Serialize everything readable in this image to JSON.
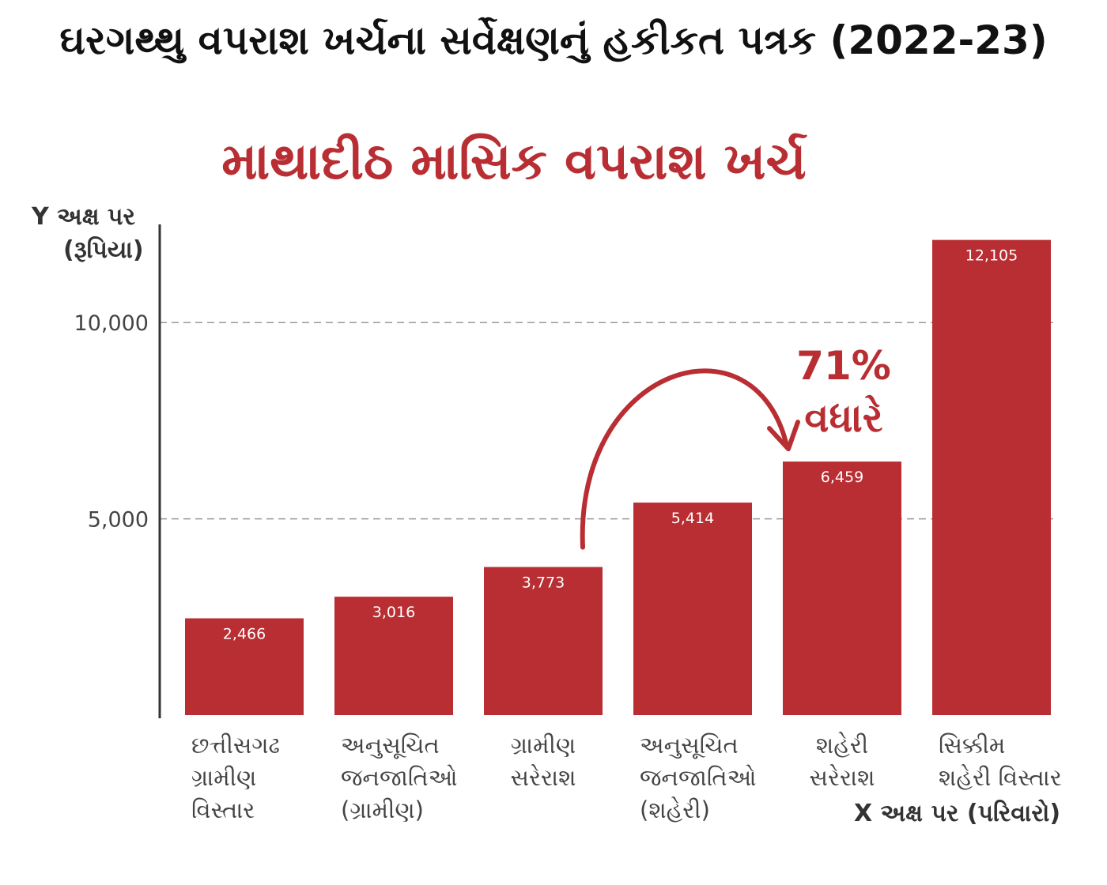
{
  "colors": {
    "bar": "#b82e33",
    "accent": "#b82e33",
    "grid": "#999999",
    "axis": "#333333"
  },
  "chart_data": {
    "type": "bar",
    "title": "ઘરગથ્થુ વપરાશ ખર્ચના સર્વેક્ષણનું હકીકત પત્રક (2022-23)",
    "subtitle": "માથાદીઠ માસિક વપરાશ ખર્ચ",
    "ylabel_line1": "Y  અક્ષ પર",
    "ylabel_line2": "(રૂપિયા)",
    "xlabel": "X અક્ષ પર (પરિવારો)",
    "categories": [
      "છત્તીસગઢ\nગ્રામીણ\nવિસ્તાર",
      "અનુસૂચિત\nજનજાતિઓ\n(ગ્રામીણ)",
      "ગ્રામીણ\nસરેરાશ",
      "અનુસૂચિત\nજનજાતિઓ\n(શહેરી)",
      "શહેરી\nસરેરાશ",
      "સિક્કીમ\nશહેરી વિસ્તાર"
    ],
    "values": [
      2466,
      3016,
      3773,
      5414,
      6459,
      12105
    ],
    "value_labels": [
      "2,466",
      "3,016",
      "3,773",
      "5,414",
      "6,459",
      "12,105"
    ],
    "ylim": [
      0,
      12500
    ],
    "yticks": [
      5000,
      10000
    ],
    "ytick_labels": [
      "5,000",
      "10,000"
    ],
    "grid": true,
    "annotation": {
      "line1": "71%",
      "line2": "વધારે",
      "from_index": 2,
      "to_index": 4
    }
  }
}
